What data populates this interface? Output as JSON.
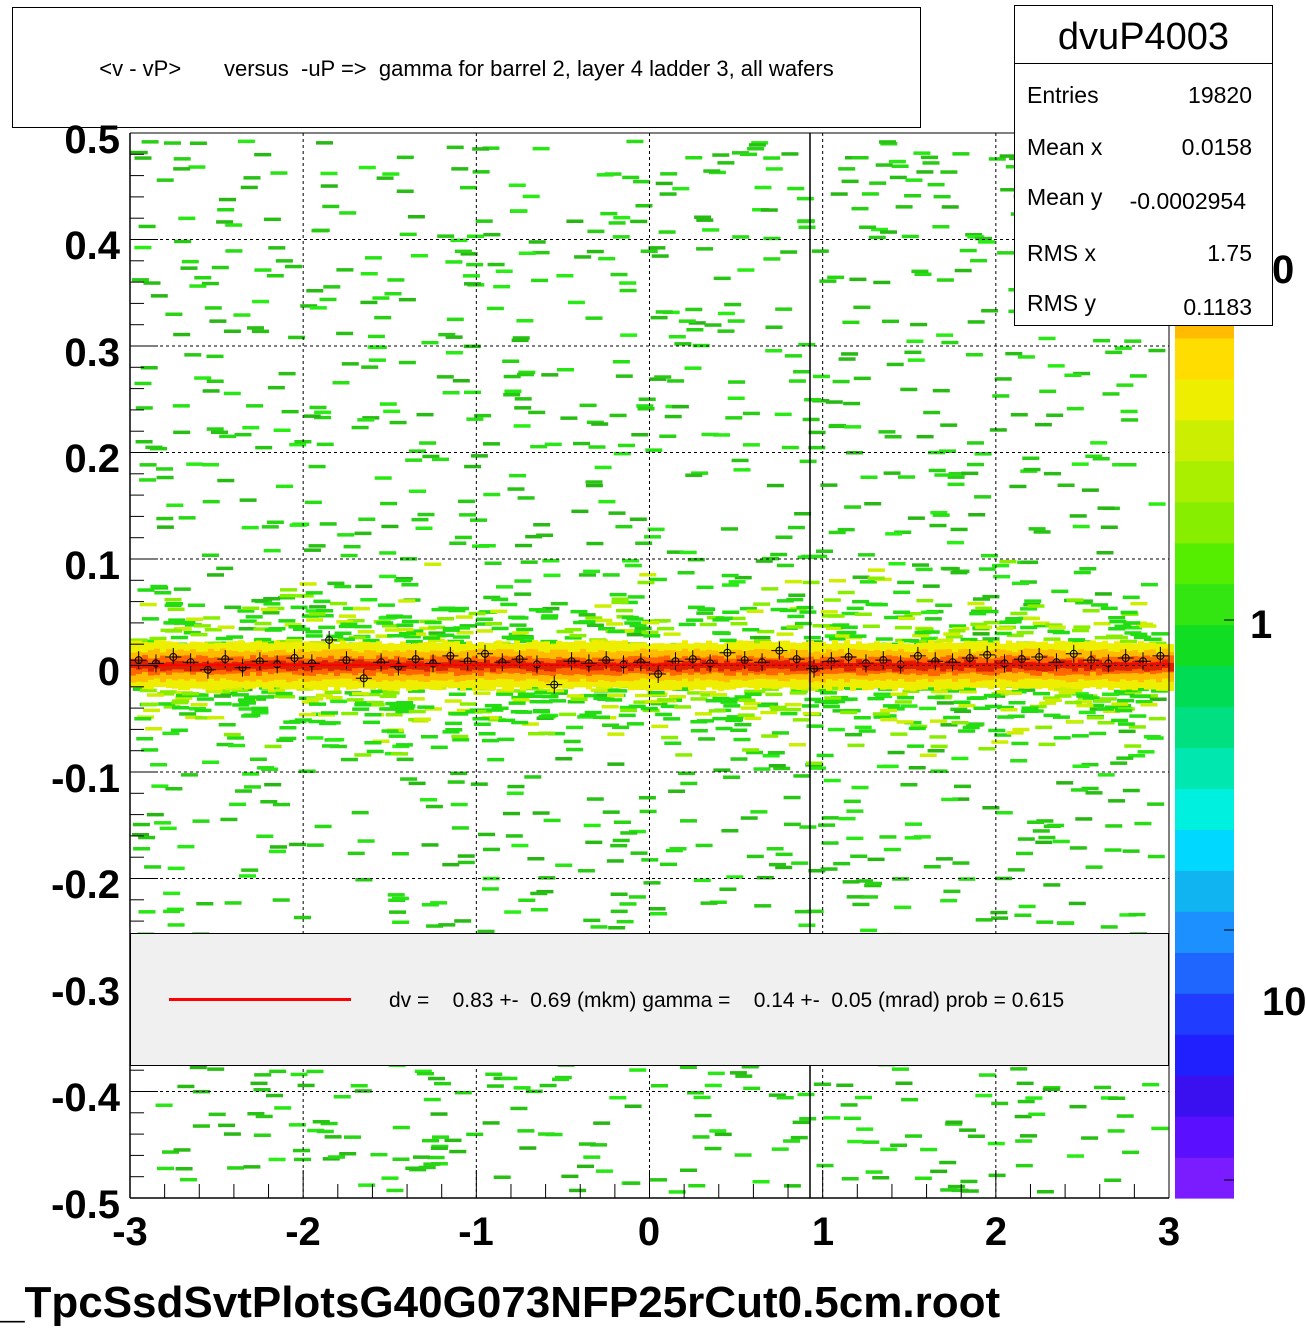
{
  "title": "<v - vP>       versus  -uP =>  gamma for barrel 2, layer 4 ladder 3, all wafers",
  "stats": {
    "name": "dvuP4003",
    "rows": [
      {
        "label": "Entries",
        "value": "19820"
      },
      {
        "label": "Mean x",
        "value": "0.0158"
      },
      {
        "label": "Mean y",
        "value": "-0.0002954"
      },
      {
        "label": "RMS x",
        "value": "1.75"
      },
      {
        "label": "RMS y",
        "value": "0.1183"
      }
    ]
  },
  "legend": {
    "text": "dv =    0.83 +-  0.69 (mkm) gamma =    0.14 +-  0.05 (mrad) prob = 0.615",
    "line_color": "#ff0000"
  },
  "file_label": "_TpcSsdSvtPlotsG40G073NFP25rCut0.5cm.root",
  "colorbar_labels": [
    "0",
    "1",
    "10"
  ],
  "chart_data": {
    "type": "heatmap",
    "xlim": [
      -3,
      3
    ],
    "ylim": [
      -0.5,
      0.5
    ],
    "x_ticks": [
      "-3",
      "-2",
      "-1",
      "0",
      "1",
      "2",
      "3"
    ],
    "y_ticks": [
      "0.5",
      "0.4",
      "0.3",
      "0.2",
      "0.1",
      "0",
      "-0.1",
      "-0.2",
      "-0.3",
      "-0.4",
      "-0.5"
    ],
    "grid": true,
    "fit_line": {
      "dv_mkm": 0.83,
      "gamma_mrad": 0.14,
      "y_at_center": 0.0008
    },
    "profile_points": [
      {
        "x": -2.95,
        "y": 0.005
      },
      {
        "x": -2.85,
        "y": 0.002
      },
      {
        "x": -2.75,
        "y": 0.008
      },
      {
        "x": -2.65,
        "y": 0.003
      },
      {
        "x": -2.55,
        "y": -0.004
      },
      {
        "x": -2.45,
        "y": 0.006
      },
      {
        "x": -2.35,
        "y": -0.002
      },
      {
        "x": -2.25,
        "y": 0.004
      },
      {
        "x": -2.15,
        "y": 0.001
      },
      {
        "x": -2.05,
        "y": 0.007
      },
      {
        "x": -1.95,
        "y": 0.002
      },
      {
        "x": -1.85,
        "y": 0.024
      },
      {
        "x": -1.75,
        "y": 0.005
      },
      {
        "x": -1.65,
        "y": -0.012
      },
      {
        "x": -1.55,
        "y": 0.003
      },
      {
        "x": -1.45,
        "y": -0.001
      },
      {
        "x": -1.35,
        "y": 0.006
      },
      {
        "x": -1.25,
        "y": 0.002
      },
      {
        "x": -1.15,
        "y": 0.009
      },
      {
        "x": -1.05,
        "y": 0.004
      },
      {
        "x": -0.95,
        "y": 0.011
      },
      {
        "x": -0.85,
        "y": 0.003
      },
      {
        "x": -0.75,
        "y": 0.006
      },
      {
        "x": -0.65,
        "y": 0.001
      },
      {
        "x": -0.55,
        "y": -0.018
      },
      {
        "x": -0.45,
        "y": 0.004
      },
      {
        "x": -0.35,
        "y": 0.002
      },
      {
        "x": -0.25,
        "y": 0.005
      },
      {
        "x": -0.15,
        "y": 0.001
      },
      {
        "x": -0.05,
        "y": 0.003
      },
      {
        "x": 0.05,
        "y": -0.008
      },
      {
        "x": 0.15,
        "y": 0.004
      },
      {
        "x": 0.25,
        "y": 0.006
      },
      {
        "x": 0.35,
        "y": 0.002
      },
      {
        "x": 0.45,
        "y": 0.012
      },
      {
        "x": 0.55,
        "y": 0.005
      },
      {
        "x": 0.65,
        "y": 0.003
      },
      {
        "x": 0.75,
        "y": 0.014
      },
      {
        "x": 0.85,
        "y": 0.006
      },
      {
        "x": 0.95,
        "y": -0.003
      },
      {
        "x": 1.05,
        "y": 0.004
      },
      {
        "x": 1.15,
        "y": 0.008
      },
      {
        "x": 1.25,
        "y": 0.002
      },
      {
        "x": 1.35,
        "y": 0.005
      },
      {
        "x": 1.45,
        "y": 0.001
      },
      {
        "x": 1.55,
        "y": 0.009
      },
      {
        "x": 1.65,
        "y": 0.004
      },
      {
        "x": 1.75,
        "y": 0.003
      },
      {
        "x": 1.85,
        "y": 0.007
      },
      {
        "x": 1.95,
        "y": 0.01
      },
      {
        "x": 2.05,
        "y": 0.002
      },
      {
        "x": 2.15,
        "y": 0.006
      },
      {
        "x": 2.25,
        "y": 0.008
      },
      {
        "x": 2.35,
        "y": 0.003
      },
      {
        "x": 2.45,
        "y": 0.011
      },
      {
        "x": 2.55,
        "y": 0.005
      },
      {
        "x": 2.65,
        "y": 0.002
      },
      {
        "x": 2.75,
        "y": 0.007
      },
      {
        "x": 2.85,
        "y": 0.004
      },
      {
        "x": 2.95,
        "y": 0.009
      }
    ]
  }
}
